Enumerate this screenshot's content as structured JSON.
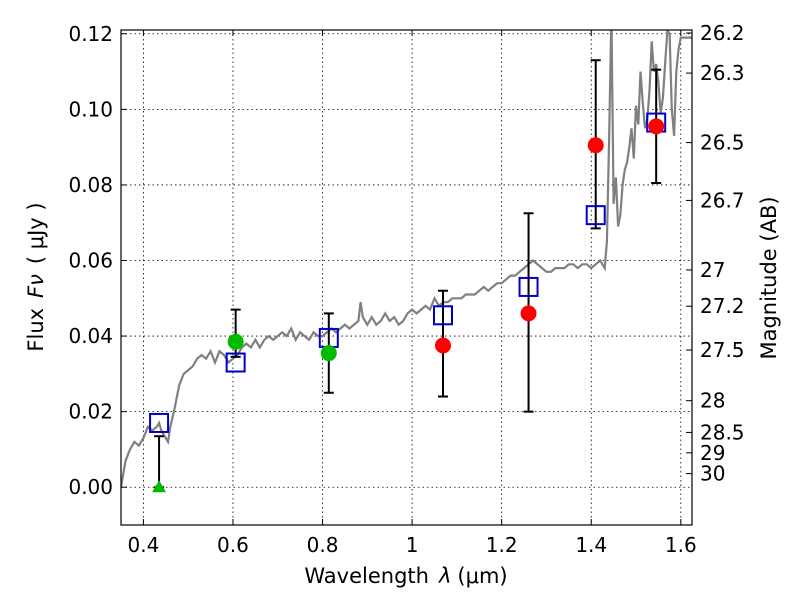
{
  "chart_data": {
    "type": "scatter",
    "xlabel_pre": "Wavelength",
    "xlabel_sym": "λ",
    "xlabel_unit": "(μm)",
    "ylabel_pre": "Flux",
    "ylabel_sym": "Fν",
    "ylabel_unit": "( μJy )",
    "y2label": "Magnitude (AB)",
    "xlim": [
      0.35,
      1.625
    ],
    "ylim": [
      -0.01,
      0.121
    ],
    "xticks": [
      0.4,
      0.6,
      0.8,
      1.0,
      1.2,
      1.4,
      1.6
    ],
    "xtick_labels": [
      "0.4",
      "0.6",
      "0.8",
      "1",
      "1.2",
      "1.4",
      "1.6"
    ],
    "yticks": [
      0.0,
      0.02,
      0.04,
      0.06,
      0.08,
      0.1,
      0.12
    ],
    "ytick_labels": [
      "0.00",
      "0.02",
      "0.04",
      "0.06",
      "0.08",
      "0.10",
      "0.12"
    ],
    "grid": true,
    "magnitude_ticks": [
      {
        "label": "26.2",
        "flux": 0.1202
      },
      {
        "label": "26.3",
        "flux": 0.1096
      },
      {
        "label": "26.5",
        "flux": 0.0912
      },
      {
        "label": "26.7",
        "flux": 0.0759
      },
      {
        "label": "27",
        "flux": 0.0575
      },
      {
        "label": "27.2",
        "flux": 0.0479
      },
      {
        "label": "27.5",
        "flux": 0.0363
      },
      {
        "label": "28",
        "flux": 0.0229
      },
      {
        "label": "28.5",
        "flux": 0.0145
      },
      {
        "label": "29",
        "flux": 0.0091
      },
      {
        "label": "30",
        "flux": 0.0036
      }
    ],
    "model_spectrum": {
      "color": "#808080",
      "points": [
        [
          0.35,
          0.0
        ],
        [
          0.36,
          0.007
        ],
        [
          0.37,
          0.01
        ],
        [
          0.38,
          0.012
        ],
        [
          0.39,
          0.011
        ],
        [
          0.4,
          0.013
        ],
        [
          0.41,
          0.016
        ],
        [
          0.42,
          0.015
        ],
        [
          0.43,
          0.016
        ],
        [
          0.435,
          0.017
        ],
        [
          0.44,
          0.015
        ],
        [
          0.445,
          0.014
        ],
        [
          0.45,
          0.013
        ],
        [
          0.455,
          0.012
        ],
        [
          0.46,
          0.016
        ],
        [
          0.47,
          0.021
        ],
        [
          0.48,
          0.027
        ],
        [
          0.49,
          0.03
        ],
        [
          0.5,
          0.031
        ],
        [
          0.51,
          0.032
        ],
        [
          0.52,
          0.034
        ],
        [
          0.53,
          0.035
        ],
        [
          0.54,
          0.034
        ],
        [
          0.55,
          0.036
        ],
        [
          0.56,
          0.033
        ],
        [
          0.57,
          0.036
        ],
        [
          0.58,
          0.035
        ],
        [
          0.59,
          0.033
        ],
        [
          0.6,
          0.034
        ],
        [
          0.61,
          0.035
        ],
        [
          0.62,
          0.037
        ],
        [
          0.63,
          0.038
        ],
        [
          0.64,
          0.037
        ],
        [
          0.65,
          0.039
        ],
        [
          0.66,
          0.037
        ],
        [
          0.67,
          0.039
        ],
        [
          0.68,
          0.04
        ],
        [
          0.69,
          0.039
        ],
        [
          0.7,
          0.04
        ],
        [
          0.71,
          0.041
        ],
        [
          0.72,
          0.04
        ],
        [
          0.73,
          0.042
        ],
        [
          0.74,
          0.039
        ],
        [
          0.75,
          0.041
        ],
        [
          0.76,
          0.04
        ],
        [
          0.77,
          0.039
        ],
        [
          0.78,
          0.041
        ],
        [
          0.79,
          0.04
        ],
        [
          0.8,
          0.04
        ],
        [
          0.81,
          0.041
        ],
        [
          0.82,
          0.042
        ],
        [
          0.83,
          0.041
        ],
        [
          0.84,
          0.042
        ],
        [
          0.85,
          0.043
        ],
        [
          0.86,
          0.042
        ],
        [
          0.87,
          0.043
        ],
        [
          0.88,
          0.044
        ],
        [
          0.885,
          0.049
        ],
        [
          0.89,
          0.045
        ],
        [
          0.9,
          0.043
        ],
        [
          0.91,
          0.045
        ],
        [
          0.92,
          0.043
        ],
        [
          0.93,
          0.044
        ],
        [
          0.94,
          0.046
        ],
        [
          0.95,
          0.044
        ],
        [
          0.96,
          0.045
        ],
        [
          0.97,
          0.043
        ],
        [
          0.98,
          0.044
        ],
        [
          0.99,
          0.046
        ],
        [
          1.0,
          0.047
        ],
        [
          1.01,
          0.046
        ],
        [
          1.02,
          0.047
        ],
        [
          1.03,
          0.048
        ],
        [
          1.04,
          0.047
        ],
        [
          1.05,
          0.05
        ],
        [
          1.06,
          0.048
        ],
        [
          1.07,
          0.049
        ],
        [
          1.08,
          0.049
        ],
        [
          1.09,
          0.05
        ],
        [
          1.1,
          0.05
        ],
        [
          1.11,
          0.05
        ],
        [
          1.12,
          0.051
        ],
        [
          1.13,
          0.051
        ],
        [
          1.14,
          0.051
        ],
        [
          1.15,
          0.052
        ],
        [
          1.16,
          0.053
        ],
        [
          1.17,
          0.052
        ],
        [
          1.18,
          0.053
        ],
        [
          1.19,
          0.054
        ],
        [
          1.2,
          0.054
        ],
        [
          1.21,
          0.055
        ],
        [
          1.22,
          0.056
        ],
        [
          1.23,
          0.056
        ],
        [
          1.24,
          0.057
        ],
        [
          1.25,
          0.058
        ],
        [
          1.26,
          0.059
        ],
        [
          1.27,
          0.06
        ],
        [
          1.28,
          0.059
        ],
        [
          1.29,
          0.058
        ],
        [
          1.3,
          0.057
        ],
        [
          1.31,
          0.057
        ],
        [
          1.32,
          0.058
        ],
        [
          1.33,
          0.058
        ],
        [
          1.34,
          0.058
        ],
        [
          1.35,
          0.059
        ],
        [
          1.36,
          0.059
        ],
        [
          1.37,
          0.058
        ],
        [
          1.38,
          0.059
        ],
        [
          1.39,
          0.059
        ],
        [
          1.4,
          0.058
        ],
        [
          1.41,
          0.059
        ],
        [
          1.42,
          0.06
        ],
        [
          1.43,
          0.058
        ],
        [
          1.435,
          0.065
        ],
        [
          1.44,
          0.092
        ],
        [
          1.445,
          0.125
        ],
        [
          1.45,
          0.075
        ],
        [
          1.455,
          0.082
        ],
        [
          1.46,
          0.069
        ],
        [
          1.465,
          0.072
        ],
        [
          1.47,
          0.08
        ],
        [
          1.475,
          0.084
        ],
        [
          1.48,
          0.086
        ],
        [
          1.485,
          0.09
        ],
        [
          1.49,
          0.095
        ],
        [
          1.495,
          0.087
        ],
        [
          1.5,
          0.101
        ],
        [
          1.505,
          0.096
        ],
        [
          1.51,
          0.11
        ],
        [
          1.515,
          0.102
        ],
        [
          1.52,
          0.095
        ],
        [
          1.525,
          0.097
        ],
        [
          1.53,
          0.105
        ],
        [
          1.535,
          0.118
        ],
        [
          1.54,
          0.11
        ],
        [
          1.545,
          0.112
        ],
        [
          1.55,
          0.107
        ],
        [
          1.555,
          0.099
        ],
        [
          1.56,
          0.103
        ],
        [
          1.565,
          0.112
        ],
        [
          1.57,
          0.121
        ],
        [
          1.575,
          0.12
        ],
        [
          1.58,
          0.1
        ],
        [
          1.585,
          0.093
        ],
        [
          1.59,
          0.11
        ],
        [
          1.595,
          0.116
        ],
        [
          1.6,
          0.119
        ],
        [
          1.61,
          0.119
        ],
        [
          1.625,
          0.119
        ]
      ]
    },
    "model_photometry": {
      "marker": "open-square",
      "color": "#0000cc",
      "points": [
        {
          "x": 0.435,
          "y": 0.017
        },
        {
          "x": 0.606,
          "y": 0.033
        },
        {
          "x": 0.814,
          "y": 0.0395
        },
        {
          "x": 1.069,
          "y": 0.0455
        },
        {
          "x": 1.26,
          "y": 0.053
        },
        {
          "x": 1.41,
          "y": 0.072
        },
        {
          "x": 1.545,
          "y": 0.0965
        }
      ]
    },
    "observed": {
      "marker": "filled-circle",
      "color_green": "#00bb00",
      "color_red": "#ff0000",
      "upper_limit_marker": "filled-triangle",
      "points": [
        {
          "x": 0.435,
          "y": 0.0,
          "err_low": 0.0,
          "err_high": 0.0135,
          "color": "green",
          "shape": "triangle"
        },
        {
          "x": 0.606,
          "y": 0.0385,
          "err_low": 0.004,
          "err_high": 0.0085,
          "color": "green",
          "shape": "circle"
        },
        {
          "x": 0.814,
          "y": 0.0355,
          "err_low": 0.0105,
          "err_high": 0.0105,
          "color": "green",
          "shape": "circle"
        },
        {
          "x": 1.069,
          "y": 0.0375,
          "err_low": 0.0135,
          "err_high": 0.0145,
          "color": "red",
          "shape": "circle"
        },
        {
          "x": 1.26,
          "y": 0.046,
          "err_low": 0.026,
          "err_high": 0.0265,
          "color": "red",
          "shape": "circle"
        },
        {
          "x": 1.41,
          "y": 0.0905,
          "err_low": 0.022,
          "err_high": 0.0225,
          "color": "red",
          "shape": "circle"
        },
        {
          "x": 1.545,
          "y": 0.0955,
          "err_low": 0.015,
          "err_high": 0.015,
          "color": "red",
          "shape": "circle"
        }
      ]
    }
  }
}
